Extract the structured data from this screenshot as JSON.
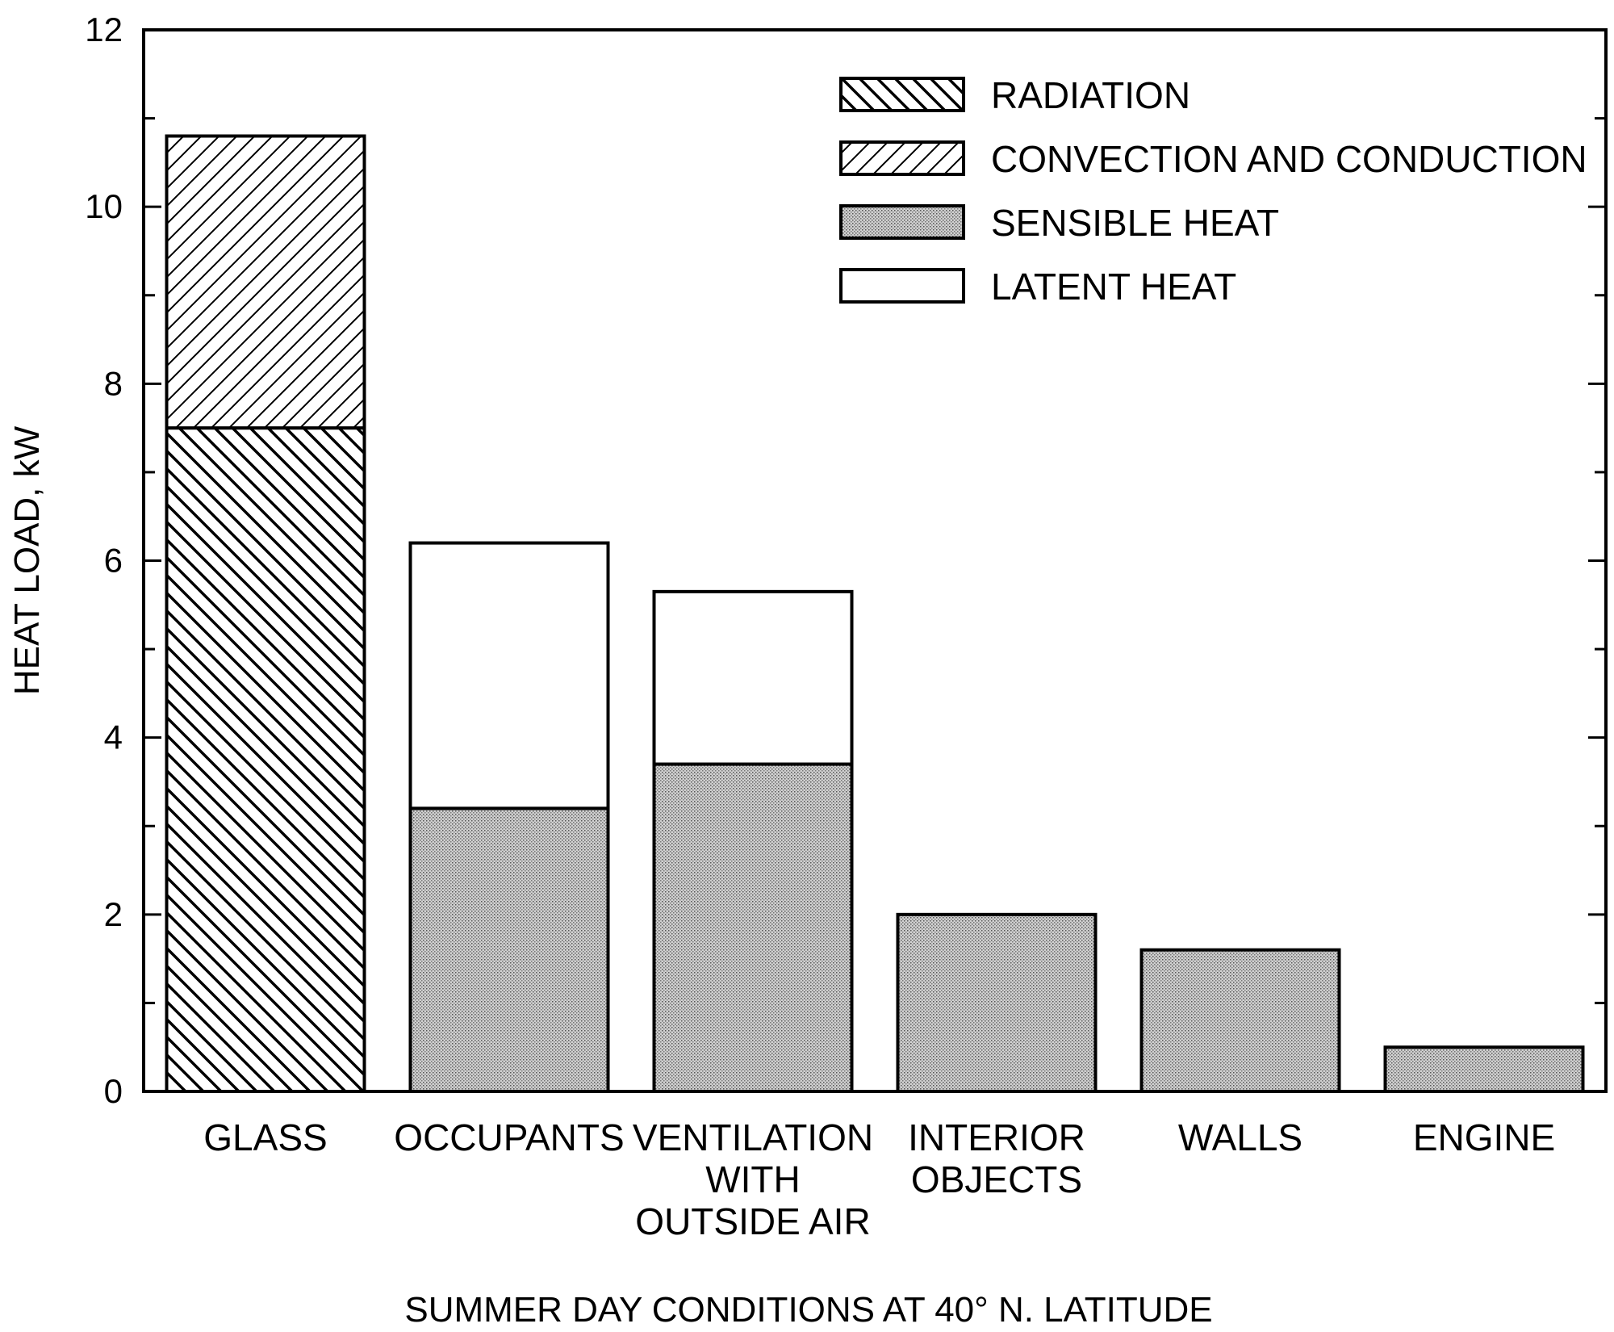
{
  "chart_data": {
    "type": "bar",
    "stacked": true,
    "title": "",
    "xlabel": "SUMMER DAY CONDITIONS AT 40° N. LATITUDE",
    "ylabel": "HEAT LOAD, kW",
    "ylim": [
      0,
      12
    ],
    "yticks": [
      0,
      2,
      4,
      6,
      8,
      10,
      12
    ],
    "grid": false,
    "legend_position": "top-right",
    "categories": [
      [
        "GLASS"
      ],
      [
        "OCCUPANTS"
      ],
      [
        "VENTILATION",
        "WITH",
        "OUTSIDE AIR"
      ],
      [
        "INTERIOR",
        "OBJECTS"
      ],
      [
        "WALLS"
      ],
      [
        "ENGINE"
      ]
    ],
    "series": [
      {
        "name": "RADIATION",
        "pattern": "hatch-back",
        "values": [
          7.5,
          0,
          0,
          0,
          0,
          0
        ]
      },
      {
        "name": "CONVECTION AND CONDUCTION",
        "pattern": "hatch-forward",
        "values": [
          3.3,
          0,
          0,
          0,
          0,
          0
        ]
      },
      {
        "name": "SENSIBLE HEAT",
        "pattern": "dotted-gray",
        "values": [
          0,
          3.2,
          3.7,
          2.0,
          1.6,
          0.5
        ]
      },
      {
        "name": "LATENT HEAT",
        "pattern": "white",
        "values": [
          0,
          3.0,
          1.95,
          0,
          0,
          0
        ]
      }
    ]
  }
}
